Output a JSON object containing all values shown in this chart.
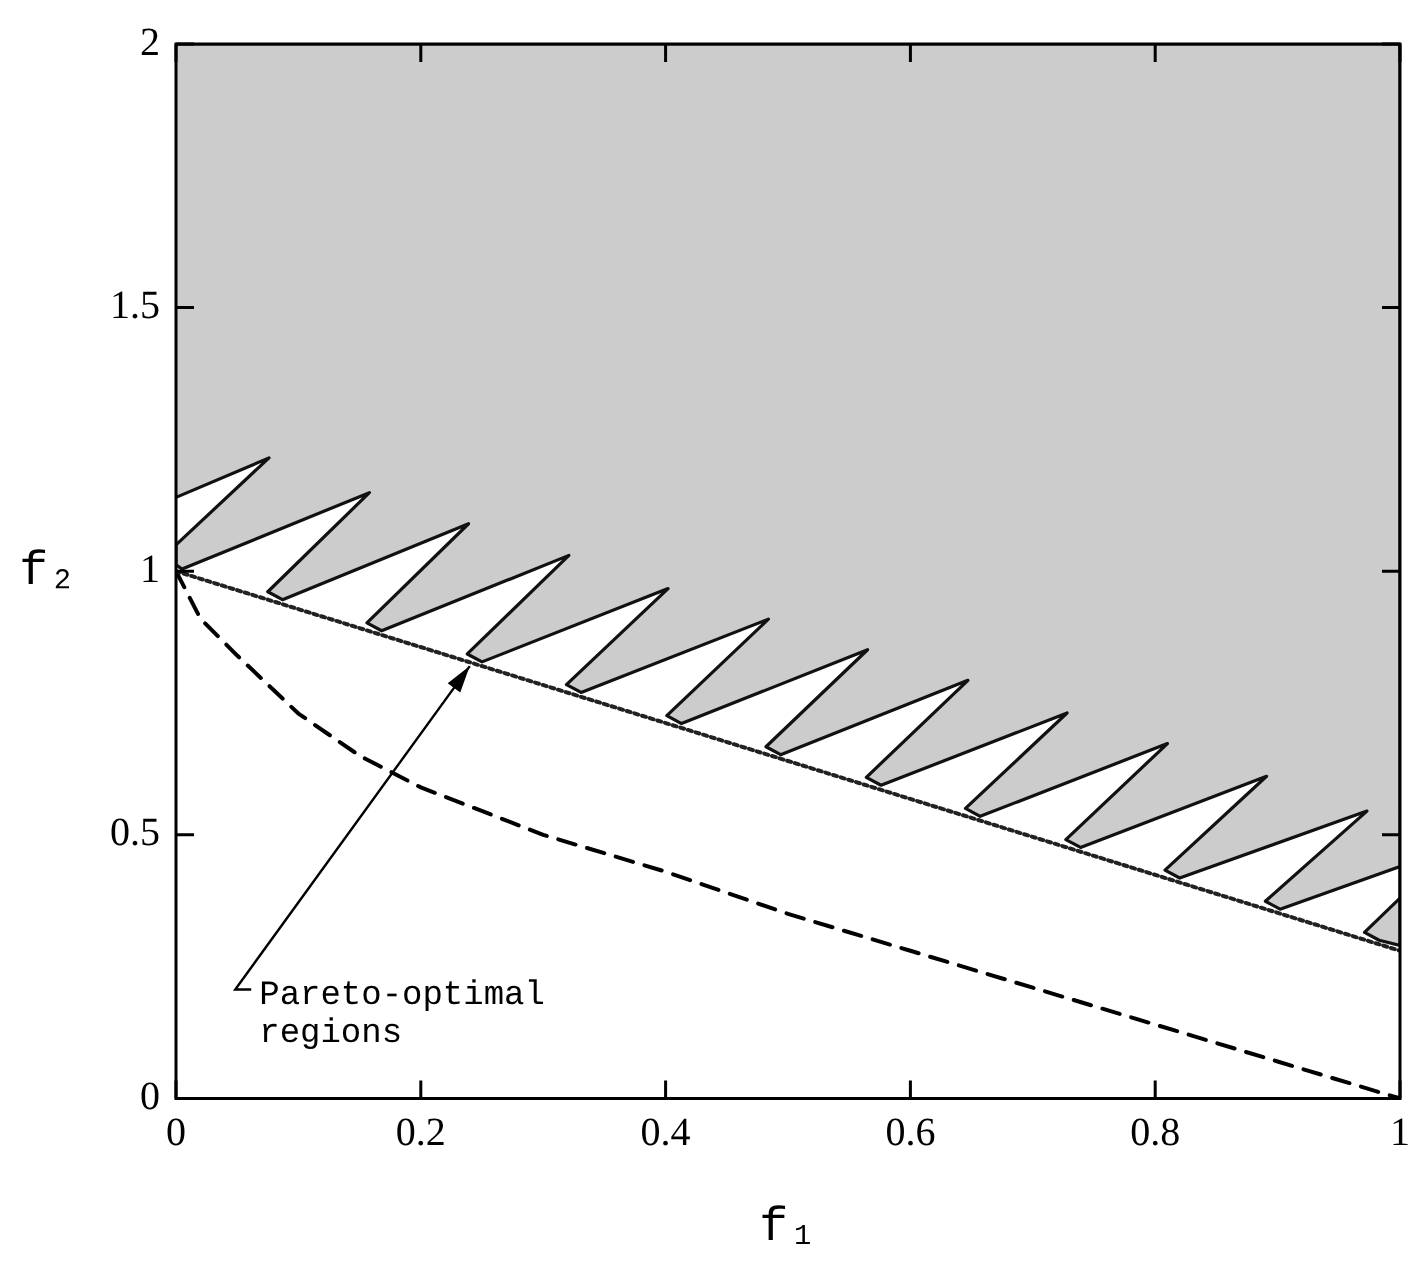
{
  "chart_data": {
    "type": "area",
    "xlabel": "f₁",
    "ylabel": "f₂",
    "xlim": [
      0,
      1
    ],
    "ylim": [
      0,
      2
    ],
    "xticks": [
      0,
      0.2,
      0.4,
      0.6,
      0.8,
      1
    ],
    "yticks": [
      0,
      0.5,
      1,
      1.5,
      2
    ],
    "grid": false,
    "marker": "none",
    "annotations": [
      {
        "text": "Pareto-optimal regions",
        "x": 0.24,
        "y": 0.82
      }
    ],
    "series": [
      {
        "type": "area",
        "color": "#cccccc",
        "x": [
          0,
          0.076,
          0,
          0,
          0.005,
          0.158,
          0.075,
          0.087,
          0.239,
          0.156,
          0.168,
          0.321,
          0.238,
          0.25,
          0.402,
          0.319,
          0.331,
          0.484,
          0.401,
          0.413,
          0.565,
          0.482,
          0.494,
          0.647,
          0.564,
          0.576,
          0.728,
          0.645,
          0.657,
          0.81,
          0.727,
          0.739,
          0.891,
          0.808,
          0.82,
          0.973,
          0.89,
          0.902,
          1,
          1,
          0.971,
          0.983,
          1,
          1,
          0
        ],
        "values": [
          1.14,
          1.215,
          1.05,
          1.012,
          1.004,
          1.149,
          0.961,
          0.946,
          1.09,
          0.902,
          0.887,
          1.03,
          0.843,
          0.828,
          0.967,
          0.785,
          0.77,
          0.909,
          0.726,
          0.711,
          0.851,
          0.667,
          0.652,
          0.793,
          0.609,
          0.594,
          0.731,
          0.55,
          0.535,
          0.673,
          0.491,
          0.476,
          0.611,
          0.433,
          0.418,
          0.545,
          0.374,
          0.359,
          0.44,
          0.38,
          0.315,
          0.3,
          0.29,
          2,
          2
        ]
      },
      {
        "type": "line",
        "line_style": "dotted",
        "color": "#222222",
        "x": [
          0,
          0.25,
          0.5,
          0.75,
          1
        ],
        "values": [
          1,
          0.82,
          0.64,
          0.46,
          0.28
        ]
      },
      {
        "type": "line",
        "line_style": "dashed",
        "color": "#000000",
        "x": [
          0,
          0.02,
          0.05,
          0.1,
          0.15,
          0.2,
          0.3,
          0.4,
          0.5,
          0.6,
          0.7,
          0.8,
          0.9,
          1
        ],
        "values": [
          1,
          0.91,
          0.84,
          0.73,
          0.65,
          0.59,
          0.5,
          0.43,
          0.35,
          0.28,
          0.21,
          0.14,
          0.07,
          0
        ]
      }
    ]
  }
}
